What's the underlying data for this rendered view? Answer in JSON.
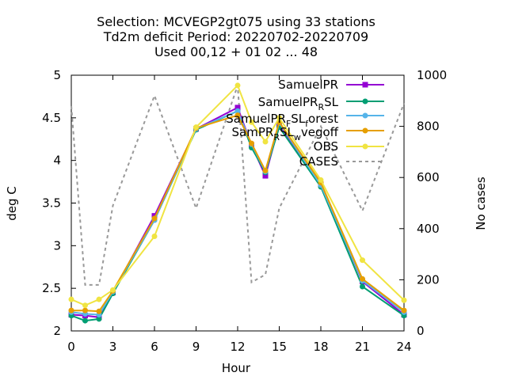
{
  "chart_data": {
    "type": "line",
    "title": [
      "Selection: MCVEGP2gt075 using    33 stations",
      "Td2m deficit   Period: 20220702-20220709",
      "Used  00,12  + 01 02 ... 48"
    ],
    "xlabel": "Hour",
    "ylabel": "deg C",
    "y2label": "No cases",
    "xlim": [
      0,
      24
    ],
    "ylim": [
      2,
      5
    ],
    "y2lim": [
      0,
      1000
    ],
    "xticks": [
      "0",
      "3",
      "6",
      "9",
      "12",
      "15",
      "18",
      "21",
      "24"
    ],
    "yticks": [
      "2",
      "2.5",
      "3",
      "3.5",
      "4",
      "4.5",
      "5"
    ],
    "y2ticks": [
      "0",
      "200",
      "400",
      "600",
      "800",
      "1000"
    ],
    "grid": false,
    "legend_position": "top-right",
    "x": [
      0,
      1,
      2,
      3,
      6,
      9,
      12,
      13,
      14,
      15,
      18,
      21,
      24
    ],
    "series": [
      {
        "name": "SamuelPR",
        "color": "#9400d3",
        "marker": "square",
        "axis": "left",
        "values": [
          2.19,
          2.18,
          2.16,
          2.45,
          3.35,
          4.37,
          4.62,
          4.18,
          3.82,
          4.42,
          3.72,
          2.58,
          2.19
        ]
      },
      {
        "name": "SamuelPR_RSL",
        "color": "#009e73",
        "marker": "circle",
        "axis": "left",
        "values": [
          2.18,
          2.12,
          2.14,
          2.44,
          3.3,
          4.36,
          4.58,
          4.15,
          3.86,
          4.39,
          3.69,
          2.52,
          2.18
        ]
      },
      {
        "name": "SamuelPR_SL_forest",
        "color": "#56b4e9",
        "marker": "circle",
        "axis": "left",
        "values": [
          2.22,
          2.2,
          2.19,
          2.46,
          3.3,
          4.37,
          4.58,
          4.19,
          3.87,
          4.44,
          3.71,
          2.59,
          2.22
        ]
      },
      {
        "name": "SamPR_RSL_wvegoff",
        "color": "#e69f00",
        "marker": "circle",
        "axis": "left",
        "values": [
          2.24,
          2.24,
          2.23,
          2.47,
          3.32,
          4.38,
          4.53,
          4.2,
          3.88,
          4.45,
          3.74,
          2.61,
          2.24
        ]
      },
      {
        "name": "OBS",
        "color": "#f0e442",
        "marker": "circle",
        "axis": "left",
        "values": [
          2.37,
          2.3,
          2.37,
          2.48,
          3.11,
          4.39,
          4.88,
          4.45,
          4.22,
          4.5,
          3.77,
          2.83,
          2.36
        ]
      },
      {
        "name": "CASES",
        "color": "#999999",
        "marker": "none",
        "axis": "right",
        "dash": true,
        "values": [
          880,
          180,
          180,
          490,
          920,
          480,
          960,
          190,
          220,
          480,
          800,
          470,
          890
        ]
      }
    ]
  },
  "legend_labels": {
    "samuelpr": "SamuelPR",
    "samuelpr_rsl": "SamuelPR",
    "samuelpr_rsl_sub": "R",
    "samuelpr_rsl_tail": "SL",
    "forest_a": "SamuelPR",
    "forest_sub": "F",
    "forest_b": "SL",
    "forest_sub2": "f",
    "forest_c": "orest",
    "wveg_a": "SamPR",
    "wveg_sub": "R",
    "wveg_b": "SL",
    "wveg_sub2": "w",
    "wveg_c": "vegoff",
    "obs": "OBS",
    "cases": "CASES"
  }
}
